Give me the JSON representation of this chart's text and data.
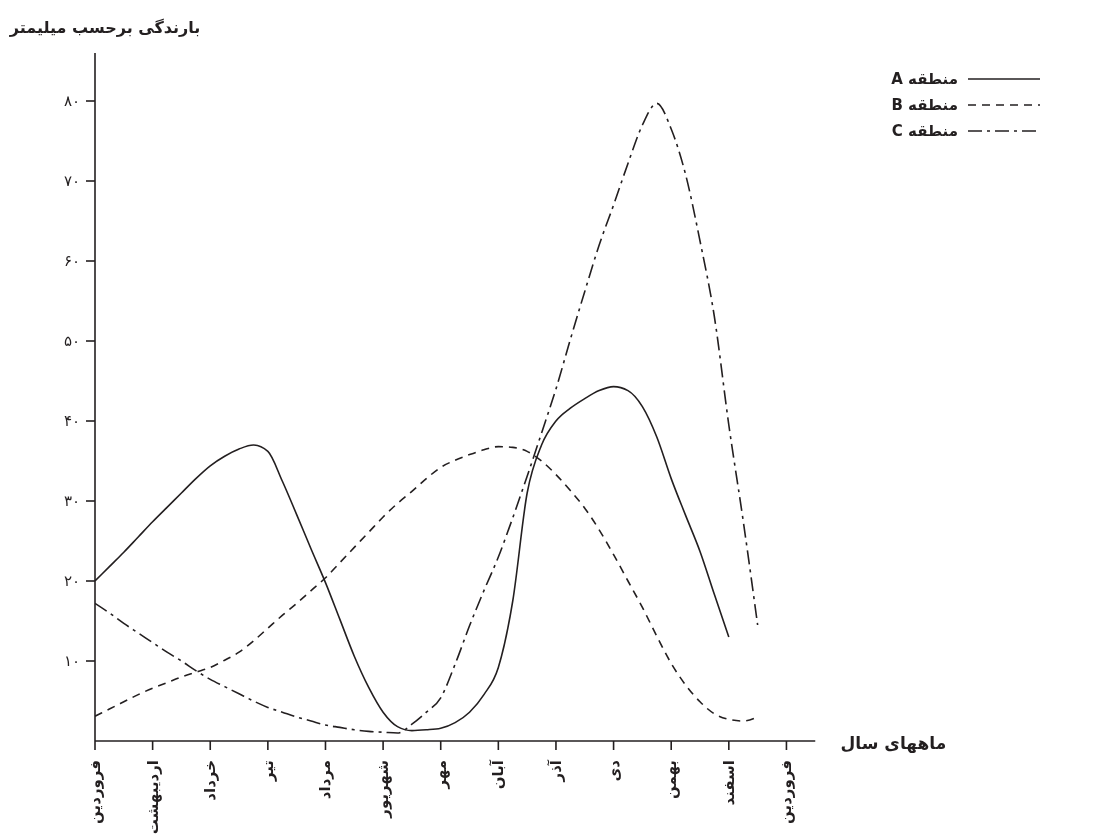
{
  "chart_data": {
    "type": "line",
    "ylabel": "بارندگی برحسب میلیمتر",
    "xlabel": "ماههای سال",
    "categories": [
      "فروردین",
      null,
      null,
      null,
      "اردیبهشت",
      null,
      null,
      null,
      "خرداد",
      null,
      null,
      null,
      "تیر",
      null,
      null,
      null,
      "مرداد",
      null,
      null,
      null,
      "شهریور",
      null,
      null,
      null,
      "مهر",
      null,
      null,
      null,
      "آبان",
      null,
      null,
      null,
      "آذر",
      null,
      null,
      null,
      "دی",
      null,
      null,
      null,
      "بهمن",
      null,
      null,
      null,
      "اسفند",
      null,
      null,
      null,
      "فروردین",
      null,
      null
    ],
    "ylim": [
      0,
      86
    ],
    "yticks": [
      {
        "value": 10,
        "label": "۱۰"
      },
      {
        "value": 20,
        "label": "۲۰"
      },
      {
        "value": 30,
        "label": "۳۰"
      },
      {
        "value": 40,
        "label": "۴۰"
      },
      {
        "value": 50,
        "label": "۵۰"
      },
      {
        "value": 60,
        "label": "۶۰"
      },
      {
        "value": 70,
        "label": "۷۰"
      },
      {
        "value": 80,
        "label": "۸۰"
      }
    ],
    "legend": "top right",
    "grid": false,
    "series": [
      {
        "name": "منطقه A",
        "color": "#231f20",
        "line_style": "solid",
        "values": [
          20,
          21.8,
          23.6,
          25.5,
          27.4,
          29.2,
          31,
          32.8,
          34.4,
          35.6,
          36.5,
          37,
          36.2,
          32.5,
          28.3,
          24,
          19.8,
          15.2,
          10.6,
          6.7,
          3.6,
          1.8,
          1.3,
          1.4,
          1.6,
          2.3,
          3.6,
          5.8,
          9.2,
          17.5,
          31,
          37,
          40,
          41.6,
          42.8,
          43.8,
          44.3,
          43.8,
          41.8,
          38,
          32.8,
          28.2,
          23.7,
          18.3,
          13,
          null,
          null,
          null,
          null,
          null,
          null
        ]
      },
      {
        "name": "منطقه B",
        "color": "#231f20",
        "line_style": "dashed",
        "values": [
          3.1,
          4,
          4.9,
          5.8,
          6.6,
          7.3,
          8,
          8.6,
          9.2,
          10.1,
          11.1,
          12.5,
          14.1,
          15.7,
          17.2,
          18.8,
          20.4,
          22.3,
          24.2,
          26.1,
          28,
          29.7,
          31.2,
          32.8,
          34.2,
          35.1,
          35.8,
          36.4,
          36.8,
          36.7,
          36.2,
          35,
          33.3,
          31.3,
          29.1,
          26.4,
          23.3,
          20,
          16.7,
          13.1,
          9.7,
          7,
          4.9,
          3.4,
          2.7,
          2.5,
          3,
          null,
          null,
          null,
          null
        ]
      },
      {
        "name": "منطقه C",
        "color": "#231f20",
        "line_style": "dashdot",
        "values": [
          17.2,
          16,
          14.7,
          13.5,
          12.3,
          11.1,
          10,
          8.8,
          7.7,
          6.8,
          5.9,
          5,
          4.2,
          3.6,
          3,
          2.5,
          2,
          1.7,
          1.4,
          1.2,
          1.1,
          1,
          2.1,
          3.6,
          5.4,
          9.6,
          14.4,
          18.8,
          23,
          27.9,
          33.1,
          38.5,
          44,
          50.2,
          56.2,
          62,
          67,
          72.2,
          77,
          79.7,
          76.5,
          70.8,
          62.5,
          53,
          39.5,
          27.5,
          14.5,
          null,
          null,
          null,
          null
        ]
      }
    ]
  }
}
